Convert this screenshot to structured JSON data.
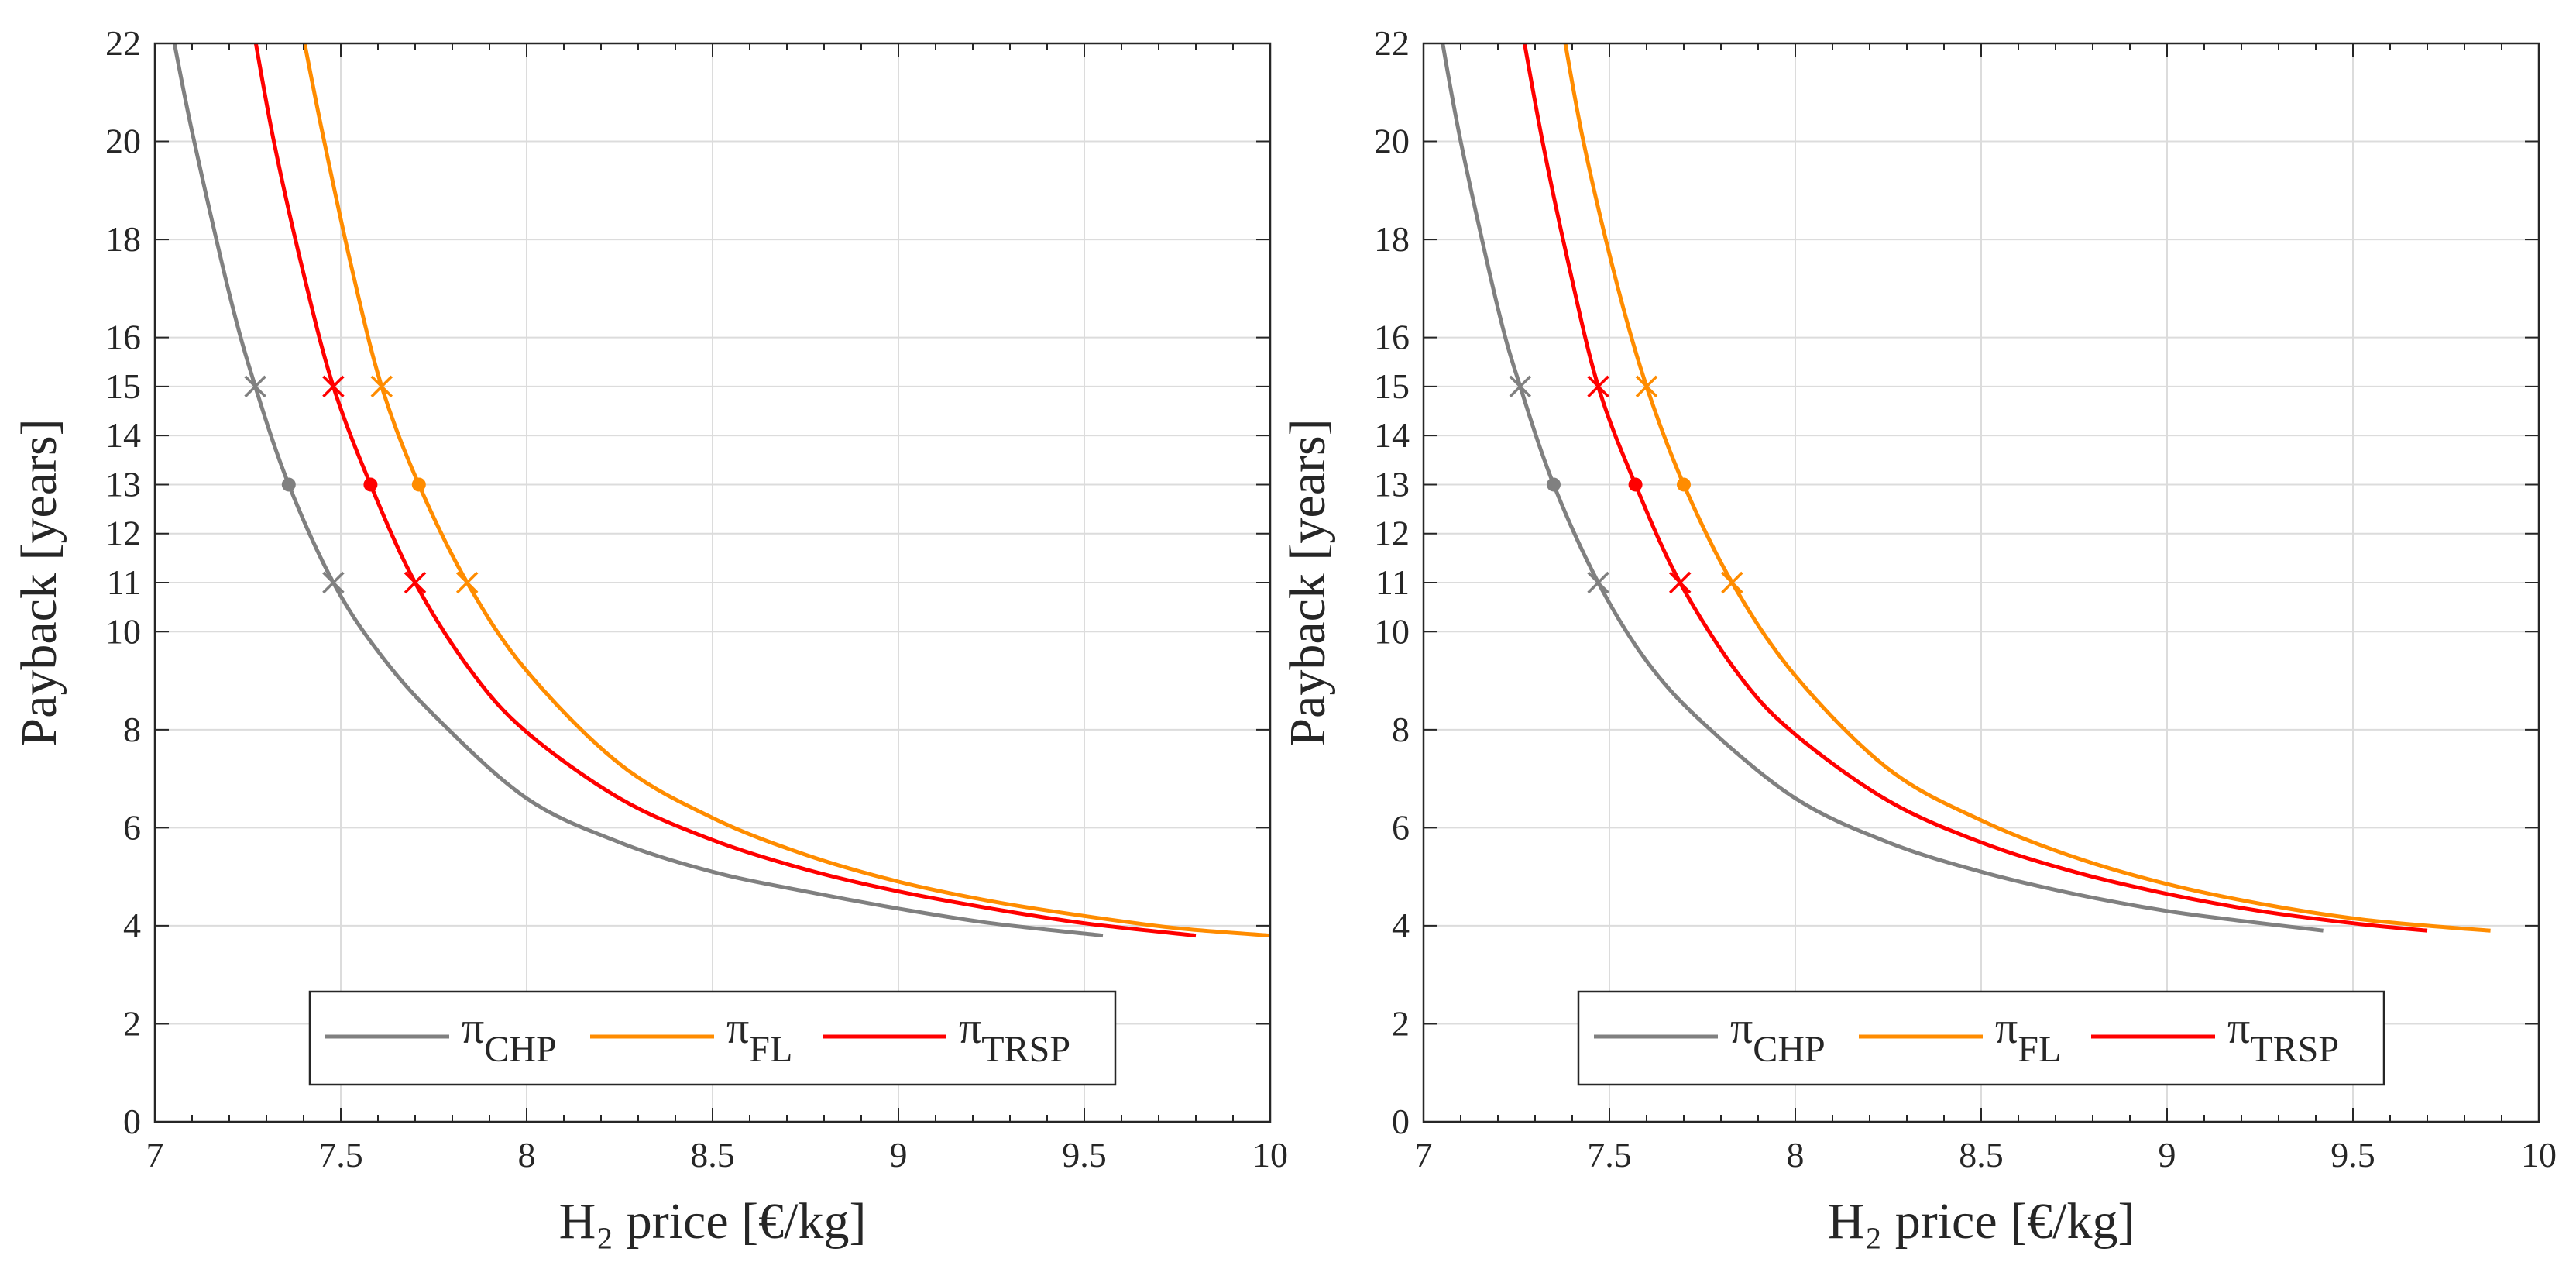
{
  "chart_data": [
    {
      "type": "line",
      "panel": "left",
      "xlabel": "H₂ price [€/kg]",
      "ylabel": "Payback [years]",
      "xlim": [
        7,
        10
      ],
      "ylim": [
        0,
        22
      ],
      "xticks": [
        7,
        7.5,
        8,
        8.5,
        9,
        9.5,
        10
      ],
      "xtick_labels": [
        "7",
        "7.5",
        "8",
        "8.5",
        "9",
        "9.5",
        "10"
      ],
      "yticks": [
        0,
        2,
        4,
        6,
        8,
        10,
        11,
        12,
        13,
        14,
        15,
        16,
        18,
        20,
        22
      ],
      "ytick_labels": [
        "0",
        "2",
        "4",
        "6",
        "8",
        "10",
        "11",
        "12",
        "13",
        "14",
        "15",
        "16",
        "18",
        "20",
        "22"
      ],
      "grid": true,
      "legend_position": "bottom-center",
      "series": [
        {
          "name": "π",
          "subscript": "CHP",
          "color": "#808080",
          "x": [
            7.04,
            7.1,
            7.2,
            7.27,
            7.36,
            7.48,
            7.6,
            7.75,
            8.0,
            8.25,
            8.5,
            8.75,
            9.0,
            9.25,
            9.55
          ],
          "y": [
            22.5,
            20.2,
            16.9,
            15.0,
            13.0,
            11.0,
            9.6,
            8.3,
            6.6,
            5.7,
            5.1,
            4.7,
            4.35,
            4.05,
            3.8
          ],
          "markers": [
            {
              "x": 7.27,
              "y": 15,
              "symbol": "x"
            },
            {
              "x": 7.36,
              "y": 13,
              "symbol": "dot"
            },
            {
              "x": 7.48,
              "y": 11,
              "symbol": "x"
            }
          ]
        },
        {
          "name": "π",
          "subscript": "FL",
          "color": "#FF8C00",
          "x": [
            7.39,
            7.45,
            7.53,
            7.61,
            7.71,
            7.84,
            8.0,
            8.25,
            8.5,
            8.75,
            9.0,
            9.25,
            9.5,
            9.75,
            10.0
          ],
          "y": [
            22.5,
            20.2,
            17.4,
            15.0,
            13.0,
            11.0,
            9.2,
            7.3,
            6.2,
            5.45,
            4.9,
            4.5,
            4.2,
            3.95,
            3.8
          ],
          "markers": [
            {
              "x": 7.61,
              "y": 15,
              "symbol": "x"
            },
            {
              "x": 7.71,
              "y": 13,
              "symbol": "dot"
            },
            {
              "x": 7.84,
              "y": 11,
              "symbol": "x"
            }
          ]
        },
        {
          "name": "π",
          "subscript": "TRSP",
          "color": "#FF0000",
          "x": [
            7.26,
            7.32,
            7.4,
            7.48,
            7.58,
            7.7,
            7.85,
            8.0,
            8.25,
            8.5,
            8.75,
            9.0,
            9.25,
            9.5,
            9.8
          ],
          "y": [
            22.5,
            20.0,
            17.3,
            15.0,
            13.0,
            11.0,
            9.2,
            7.95,
            6.6,
            5.75,
            5.15,
            4.7,
            4.35,
            4.05,
            3.8
          ],
          "markers": [
            {
              "x": 7.48,
              "y": 15,
              "symbol": "x"
            },
            {
              "x": 7.58,
              "y": 13,
              "symbol": "dot"
            },
            {
              "x": 7.7,
              "y": 11,
              "symbol": "x"
            }
          ]
        }
      ]
    },
    {
      "type": "line",
      "panel": "right",
      "xlabel": "H₂ price [€/kg]",
      "ylabel": "Payback [years]",
      "xlim": [
        7,
        10
      ],
      "ylim": [
        0,
        22
      ],
      "xticks": [
        7,
        7.5,
        8,
        8.5,
        9,
        9.5,
        10
      ],
      "xtick_labels": [
        "7",
        "7.5",
        "8",
        "8.5",
        "9",
        "9.5",
        "10"
      ],
      "yticks": [
        0,
        2,
        4,
        6,
        8,
        10,
        11,
        12,
        13,
        14,
        15,
        16,
        18,
        20,
        22
      ],
      "ytick_labels": [
        "0",
        "2",
        "4",
        "6",
        "8",
        "10",
        "11",
        "12",
        "13",
        "14",
        "15",
        "16",
        "18",
        "20",
        "22"
      ],
      "grid": true,
      "legend_position": "bottom-center",
      "series": [
        {
          "name": "π",
          "subscript": "CHP",
          "color": "#808080",
          "x": [
            7.04,
            7.1,
            7.2,
            7.26,
            7.35,
            7.47,
            7.6,
            7.75,
            8.0,
            8.25,
            8.5,
            8.75,
            9.0,
            9.2,
            9.42
          ],
          "y": [
            22.5,
            20.0,
            16.6,
            15.0,
            13.0,
            11.0,
            9.4,
            8.15,
            6.6,
            5.7,
            5.1,
            4.65,
            4.3,
            4.1,
            3.9
          ],
          "markers": [
            {
              "x": 7.26,
              "y": 15,
              "symbol": "x"
            },
            {
              "x": 7.35,
              "y": 13,
              "symbol": "dot"
            },
            {
              "x": 7.47,
              "y": 11,
              "symbol": "x"
            }
          ]
        },
        {
          "name": "π",
          "subscript": "FL",
          "color": "#FF8C00",
          "x": [
            7.37,
            7.43,
            7.52,
            7.6,
            7.7,
            7.83,
            8.0,
            8.25,
            8.5,
            8.75,
            9.0,
            9.25,
            9.5,
            9.7,
            9.87
          ],
          "y": [
            22.5,
            20.0,
            17.1,
            15.0,
            13.0,
            11.0,
            9.1,
            7.2,
            6.15,
            5.4,
            4.85,
            4.45,
            4.15,
            4.0,
            3.9
          ],
          "markers": [
            {
              "x": 7.6,
              "y": 15,
              "symbol": "x"
            },
            {
              "x": 7.7,
              "y": 13,
              "symbol": "dot"
            },
            {
              "x": 7.83,
              "y": 11,
              "symbol": "x"
            }
          ]
        },
        {
          "name": "π",
          "subscript": "TRSP",
          "color": "#FF0000",
          "x": [
            7.26,
            7.32,
            7.39,
            7.47,
            7.57,
            7.69,
            7.85,
            8.0,
            8.25,
            8.5,
            8.75,
            9.0,
            9.25,
            9.5,
            9.7
          ],
          "y": [
            22.5,
            20.0,
            17.5,
            15.0,
            13.0,
            11.0,
            9.1,
            7.9,
            6.55,
            5.7,
            5.1,
            4.65,
            4.3,
            4.05,
            3.9
          ],
          "markers": [
            {
              "x": 7.47,
              "y": 15,
              "symbol": "x"
            },
            {
              "x": 7.57,
              "y": 13,
              "symbol": "dot"
            },
            {
              "x": 7.69,
              "y": 11,
              "symbol": "x"
            }
          ]
        }
      ]
    }
  ]
}
